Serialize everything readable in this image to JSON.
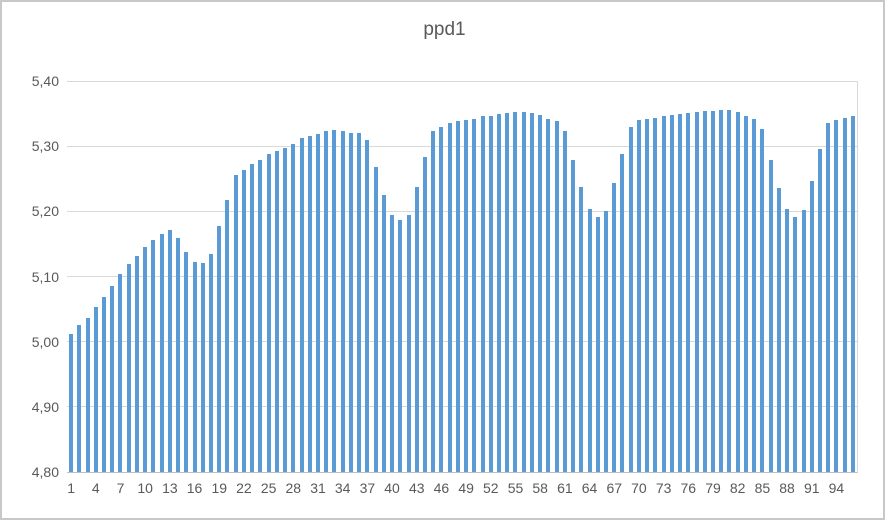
{
  "window": {
    "background_color": "#FFFFFF",
    "frame_border_color": "#C8C8C8"
  },
  "chart_data": {
    "type": "bar",
    "title": "ppd1",
    "legend": "none",
    "grid": "horizontal",
    "bar_color": "#5B9BD5",
    "gridline_color": "#D9D9D9",
    "axis_line_color": "#BFBFBF",
    "text_color": "#595959",
    "ylim": [
      4.8,
      5.4
    ],
    "ytick_step": 0.1,
    "ytick_labels": [
      "4,80",
      "4,90",
      "5,00",
      "5,10",
      "5,20",
      "5,30",
      "5,40"
    ],
    "xtick_interval": 3,
    "xtick_labels": [
      "1",
      "4",
      "7",
      "10",
      "13",
      "16",
      "19",
      "22",
      "25",
      "28",
      "31",
      "34",
      "37",
      "40",
      "43",
      "46",
      "49",
      "52",
      "55",
      "58",
      "61",
      "64",
      "67",
      "70",
      "73",
      "76",
      "79",
      "82",
      "85",
      "88",
      "91",
      "94"
    ],
    "categories": [
      1,
      2,
      3,
      4,
      5,
      6,
      7,
      8,
      9,
      10,
      11,
      12,
      13,
      14,
      15,
      16,
      17,
      18,
      19,
      20,
      21,
      22,
      23,
      24,
      25,
      26,
      27,
      28,
      29,
      30,
      31,
      32,
      33,
      34,
      35,
      36,
      37,
      38,
      39,
      40,
      41,
      42,
      43,
      44,
      45,
      46,
      47,
      48,
      49,
      50,
      51,
      52,
      53,
      54,
      55,
      56,
      57,
      58,
      59,
      60,
      61,
      62,
      63,
      64,
      65,
      66,
      67,
      68,
      69,
      70,
      71,
      72,
      73,
      74,
      75,
      76,
      77,
      78,
      79,
      80,
      81,
      82,
      83,
      84,
      85,
      86,
      87,
      88,
      89,
      90,
      91,
      92,
      93,
      94,
      95,
      96
    ],
    "values": [
      5.012,
      5.026,
      5.037,
      5.053,
      5.069,
      5.086,
      5.104,
      5.119,
      5.132,
      5.146,
      5.156,
      5.166,
      5.172,
      5.159,
      5.138,
      5.122,
      5.12,
      5.134,
      5.177,
      5.218,
      5.256,
      5.263,
      5.273,
      5.279,
      5.288,
      5.292,
      5.297,
      5.304,
      5.312,
      5.315,
      5.319,
      5.323,
      5.325,
      5.323,
      5.32,
      5.32,
      5.309,
      5.268,
      5.225,
      5.195,
      5.186,
      5.195,
      5.237,
      5.284,
      5.324,
      5.33,
      5.335,
      5.338,
      5.34,
      5.342,
      5.346,
      5.347,
      5.35,
      5.351,
      5.352,
      5.353,
      5.351,
      5.348,
      5.342,
      5.338,
      5.324,
      5.279,
      5.237,
      5.203,
      5.192,
      5.201,
      5.243,
      5.288,
      5.33,
      5.34,
      5.342,
      5.343,
      5.346,
      5.348,
      5.35,
      5.351,
      5.352,
      5.354,
      5.354,
      5.355,
      5.356,
      5.352,
      5.346,
      5.341,
      5.327,
      5.279,
      5.236,
      5.204,
      5.192,
      5.202,
      5.247,
      5.296,
      5.335,
      5.34,
      5.344,
      5.346
    ]
  }
}
